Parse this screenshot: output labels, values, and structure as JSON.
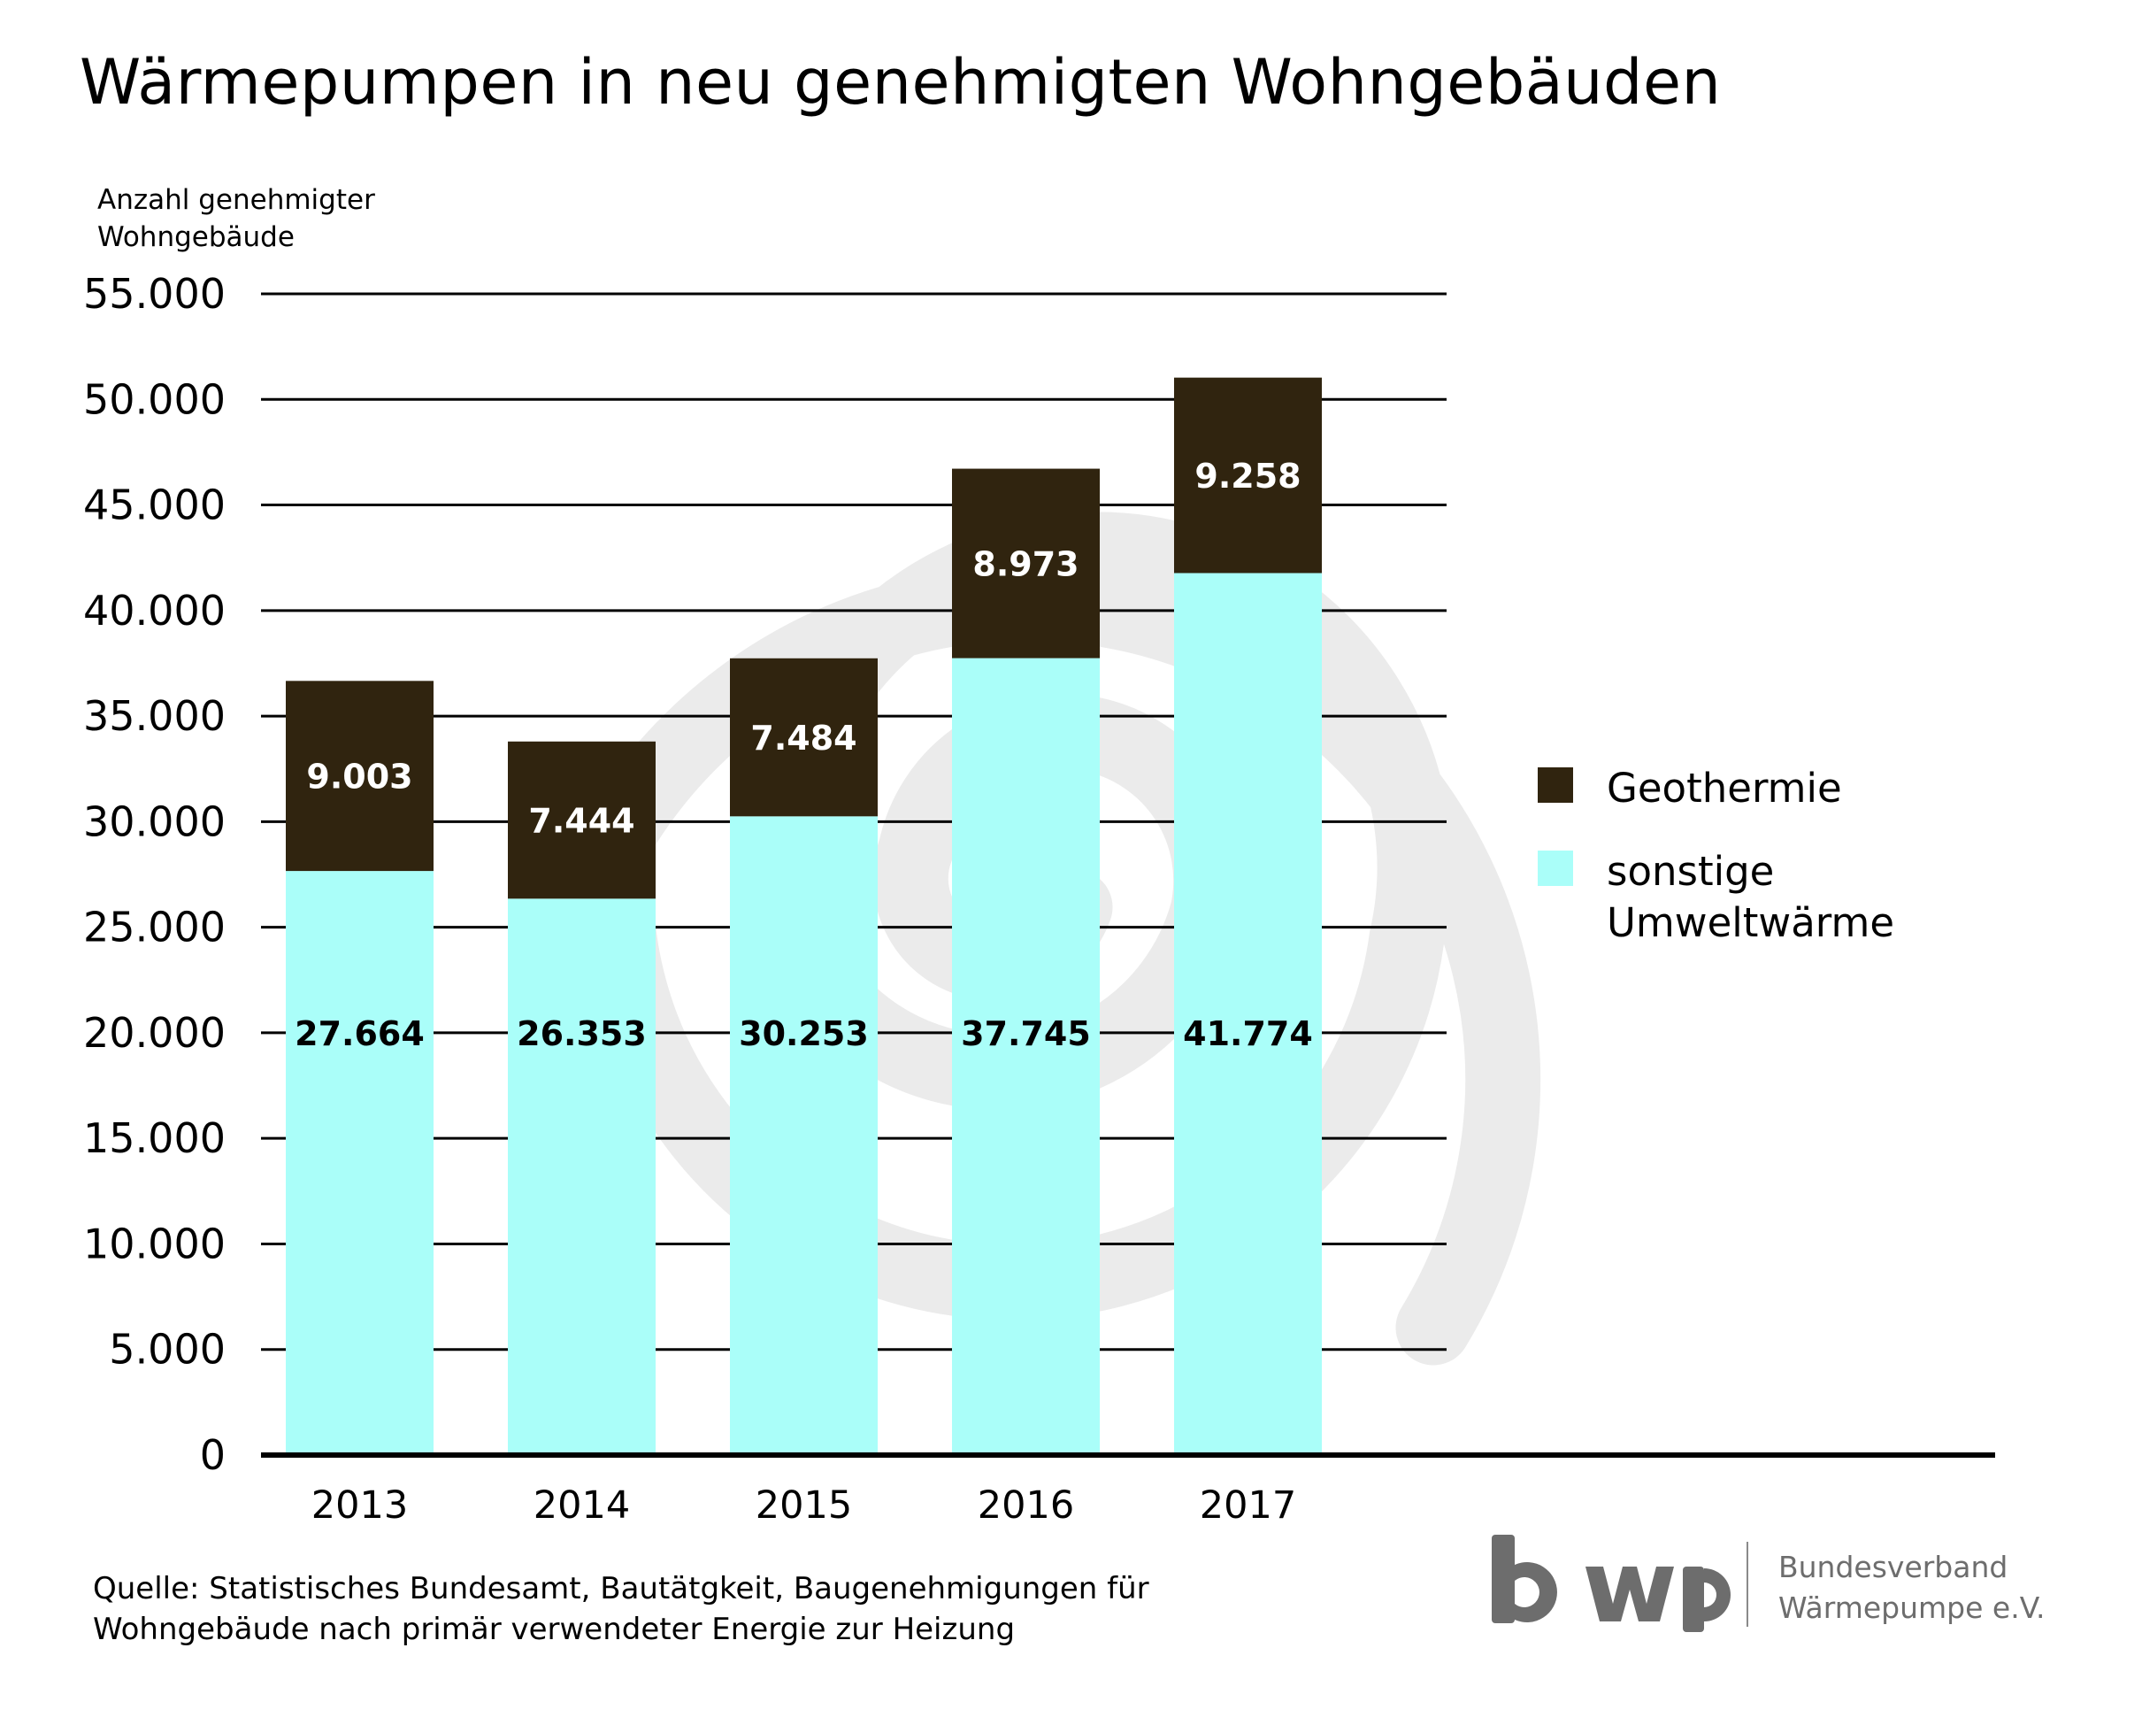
{
  "chart_data": {
    "type": "bar",
    "stacked": true,
    "title": "Wärmepumpen in neu genehmigten Wohngebäuden",
    "ylabel_lines": [
      "Anzahl genehmigter",
      "Wohngebäude"
    ],
    "categories": [
      "2013",
      "2014",
      "2015",
      "2016",
      "2017"
    ],
    "series": [
      {
        "name": "sonstige Umweltwärme",
        "color": "#aafef9",
        "values": [
          27664,
          26353,
          30253,
          37745,
          41774
        ],
        "labels": [
          "27.664",
          "26.353",
          "30.253",
          "37.745",
          "41.774"
        ]
      },
      {
        "name": "Geothermie",
        "color": "#30240f",
        "values": [
          9003,
          7444,
          7484,
          8973,
          9258
        ],
        "labels": [
          "9.003",
          "7.444",
          "7.484",
          "8.973",
          "9.258"
        ]
      }
    ],
    "ylim": [
      0,
      55000
    ],
    "yticks": [
      0,
      5000,
      10000,
      15000,
      20000,
      25000,
      30000,
      35000,
      40000,
      45000,
      50000,
      55000
    ],
    "ytick_labels": [
      "0",
      "5.000",
      "10.000",
      "15.000",
      "20.000",
      "25.000",
      "30.000",
      "35.000",
      "40.000",
      "45.000",
      "50.000",
      "55.000"
    ],
    "grid": true,
    "legend_position": "right",
    "background_watermark": "spiral"
  },
  "legend": {
    "items": [
      {
        "label": "Geothermie",
        "color": "#30240f"
      },
      {
        "label": "sonstige Umweltwärme",
        "color": "#aafef9"
      }
    ]
  },
  "source_lines": [
    "Quelle: Statistisches Bundesamt, Bautätgkeit, Baugenehmigungen für",
    "Wohngebäude nach primär verwendeter Energie zur Heizung"
  ],
  "logo": {
    "text": "bwp",
    "org_lines": [
      "Bundesverband",
      "Wärmepumpe e.V."
    ],
    "color": "#6d6d6d"
  }
}
